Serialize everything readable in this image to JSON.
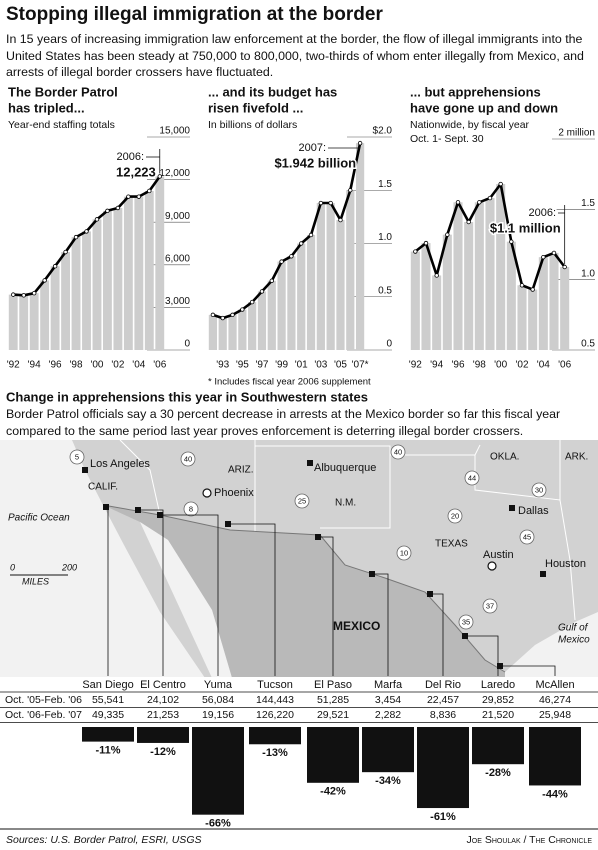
{
  "header": {
    "title": "Stopping illegal immigration at the border",
    "intro": "In 15 years of increasing immigration law enforcement at the border, the flow of illegal immigrants into the United States has been steady at 750,000 to 800,000, two-thirds of whom enter illegally from Mexico, and arrests of illegal border crossers have fluctuated."
  },
  "chart_data": [
    {
      "type": "line",
      "title": [
        "The Border Patrol",
        "has tripled..."
      ],
      "subtitle": [
        "Year-end staffing totals"
      ],
      "categories": [
        "'92",
        null,
        "'94",
        null,
        "'96",
        null,
        "'98",
        null,
        "'00",
        null,
        "'02",
        null,
        "'04",
        null,
        "'06"
      ],
      "values": [
        3900,
        3850,
        4000,
        4900,
        5900,
        6900,
        7950,
        8350,
        9200,
        9800,
        10000,
        10800,
        10800,
        11200,
        12223
      ],
      "color": "#000000",
      "bar_color": "#cdcdcd",
      "ylim": [
        0,
        15000
      ],
      "yticks": [
        0,
        {
          "value": 3000,
          "label": "3,000"
        },
        {
          "value": 6000,
          "label": "6,000"
        },
        {
          "value": 9000,
          "label": "9,000"
        },
        {
          "value": 12000,
          "label": "12,000"
        },
        {
          "value": 15000,
          "label": "15,000"
        }
      ],
      "annotation": [
        "2006:",
        "12,223"
      ]
    },
    {
      "type": "line",
      "title": [
        "... and its budget has",
        "risen fivefold ..."
      ],
      "subtitle": [
        "In billions of dollars"
      ],
      "categories": [
        null,
        "'93",
        null,
        "'95",
        null,
        "'97",
        null,
        "'99",
        null,
        "'01",
        null,
        "'03",
        null,
        "'05",
        null,
        "'07*"
      ],
      "values": [
        0.33,
        0.3,
        0.33,
        0.38,
        0.45,
        0.55,
        0.65,
        0.83,
        0.88,
        1.0,
        1.08,
        1.38,
        1.38,
        1.22,
        1.5,
        1.942
      ],
      "color": "#000000",
      "bar_color": "#cdcdcd",
      "ylim": [
        0,
        2
      ],
      "yticks": [
        0,
        0.5,
        {
          "value": 1,
          "label": "1.0"
        },
        1.5,
        {
          "value": 2,
          "label": "$2.0"
        }
      ],
      "annotation": [
        "2007:",
        "$1.942 billion"
      ],
      "note": "* Includes fiscal year 2006 supplement"
    },
    {
      "type": "line",
      "title": [
        "... but apprehensions",
        "have gone up and down"
      ],
      "subtitle": [
        "Nationwide, by fiscal year",
        "Oct. 1- Sept. 30"
      ],
      "categories": [
        "'92",
        null,
        "'94",
        null,
        "'96",
        null,
        "'98",
        null,
        "'00",
        null,
        "'02",
        null,
        "'04",
        null,
        "'06"
      ],
      "values": [
        1.2,
        1.26,
        1.03,
        1.32,
        1.55,
        1.41,
        1.55,
        1.58,
        1.68,
        1.27,
        0.96,
        0.93,
        1.16,
        1.19,
        1.09
      ],
      "color": "#000000",
      "bar_color": "#cdcdcd",
      "ylim": [
        0.5,
        2
      ],
      "yticks": [
        0.5,
        {
          "value": 1,
          "label": "1.0"
        },
        1.5,
        {
          "value": 2,
          "label": "2 million"
        }
      ],
      "annotation": [
        "2006:",
        "$1.1 million"
      ]
    },
    {
      "type": "bar",
      "title": [
        "Change in apprehensions this year in Southwestern states"
      ],
      "subtitle": [
        "Border Patrol officials say a 30 percent decrease in arrests at the Mexico border so far this fiscal year compared to the same period last year proves enforcement is deterring illegal border crossers."
      ],
      "categories": [
        "San Diego",
        "El Centro",
        "Yuma",
        "Tucson",
        "El Paso",
        "Marfa",
        "Del Rio",
        "Laredo",
        "McAllen"
      ],
      "values": [
        -11,
        -12,
        -66,
        -13,
        -42,
        -34,
        -61,
        -28,
        -44
      ],
      "value_labels": [
        "-11%",
        "-12%",
        "-66%",
        "-13%",
        "-42%",
        "-34%",
        "-61%",
        "-28%",
        "-44%"
      ],
      "color": "#111111",
      "ylim": [
        -70,
        0
      ]
    }
  ],
  "table": {
    "row_labels": [
      "Oct. '05-Feb. '06",
      "Oct. '06-Feb. '07"
    ],
    "rows": [
      [
        "55,541",
        "24,102",
        "56,084",
        "144,443",
        "51,285",
        "3,454",
        "22,457",
        "29,852",
        "46,274"
      ],
      [
        "49,335",
        "21,253",
        "19,156",
        "126,220",
        "29,521",
        "2,282",
        "8,836",
        "21,520",
        "25,948"
      ]
    ]
  },
  "map": {
    "labels": [
      "Los Angeles",
      "CALIF.",
      "ARIZ.",
      "Phoenix",
      "Albuquerque",
      "N.M.",
      "OKLA.",
      "ARK.",
      "Dallas",
      "TEXAS",
      "Austin",
      "Houston",
      "MEXICO",
      "Pacific Ocean",
      "Gulf of",
      "Mexico",
      "0",
      "200",
      "MILES"
    ],
    "roads": [
      "5",
      "40",
      "8",
      "25",
      "40",
      "44",
      "30",
      "20",
      "10",
      "45",
      "37",
      "35"
    ]
  },
  "footer": {
    "source": "Sources: U.S. Border Patrol, ESRI, USGS",
    "credit": "Joe Shoulak / The Chronicle"
  }
}
